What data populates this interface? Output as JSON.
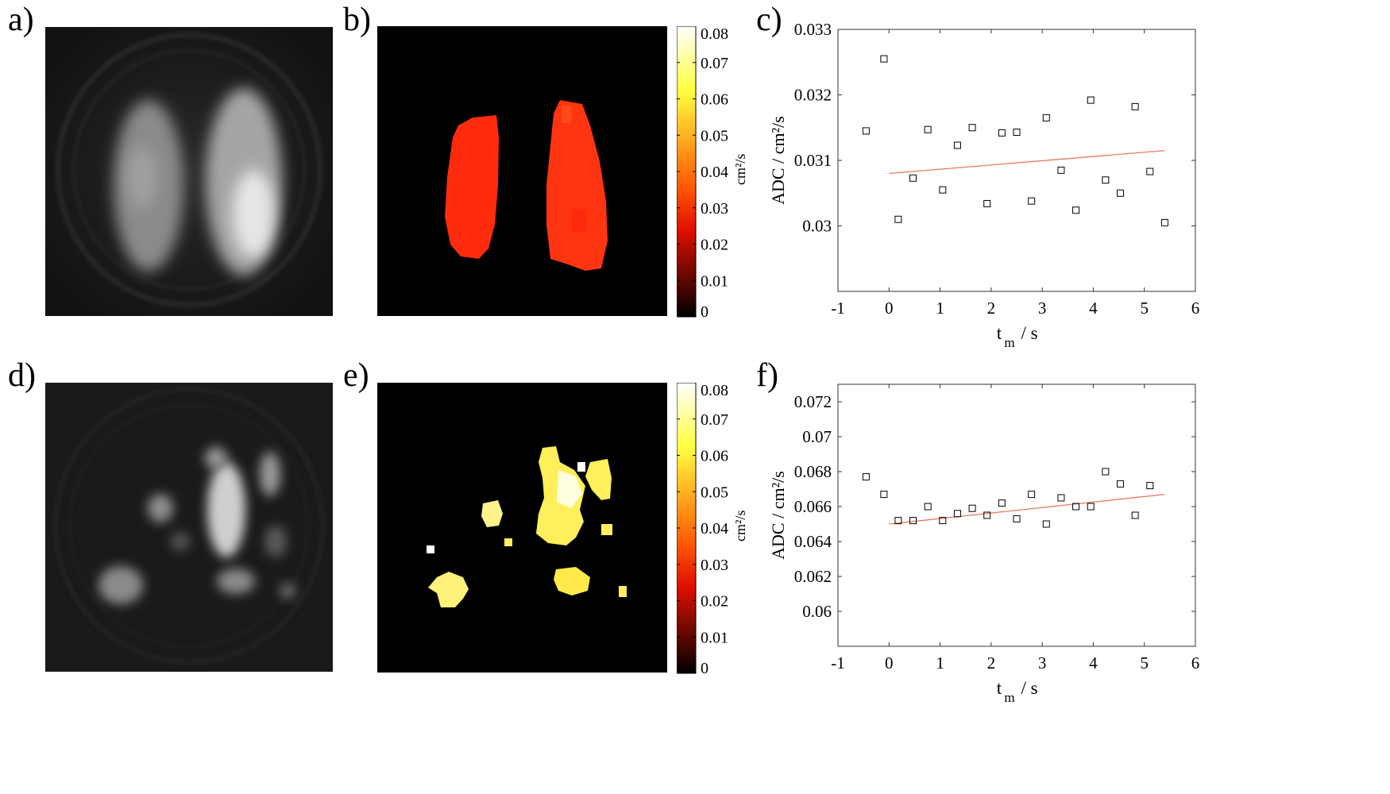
{
  "figure": {
    "panel_labels": [
      "a)",
      "b)",
      "c)",
      "d)",
      "e)",
      "f)"
    ],
    "colorbar": {
      "unit": "cm²/s",
      "ticks": [
        "0.08",
        "0.07",
        "0.06",
        "0.05",
        "0.04",
        "0.03",
        "0.02",
        "0.01",
        "0"
      ],
      "colors": {
        "top": "#ffffff",
        "upper": "#ffff40",
        "mid_high": "#ff9a00",
        "mid": "#ff2200",
        "low": "#a00000",
        "bottom": "#000000"
      }
    },
    "colors": {
      "marker": "#000000",
      "fit_line": "#e8795f",
      "lung_red": "#ff2f10",
      "lung_yellow": "#ffef5a",
      "image_bg": "#000000"
    }
  },
  "chart_data": [
    {
      "type": "scatter",
      "panel": "c)",
      "xlabel_main": "t",
      "xlabel_sub": "m",
      "xlabel_unit": "/ s",
      "ylabel": "ADC / cm²/s",
      "xlim": [
        -1,
        6
      ],
      "ylim": [
        0.029,
        0.033
      ],
      "xticks": [
        "-1",
        "0",
        "1",
        "2",
        "3",
        "4",
        "5",
        "6"
      ],
      "xtick_values": [
        -1,
        0,
        1,
        2,
        3,
        4,
        5,
        6
      ],
      "yticks": [
        "0.03",
        "0.031",
        "0.032",
        "0.033"
      ],
      "ytick_values": [
        0.03,
        0.031,
        0.032,
        0.033
      ],
      "x": [
        -0.45,
        -0.1,
        0.18,
        0.47,
        0.76,
        1.05,
        1.34,
        1.63,
        1.92,
        2.21,
        2.5,
        2.79,
        3.08,
        3.37,
        3.66,
        3.95,
        4.24,
        4.53,
        4.82,
        5.11,
        5.4
      ],
      "y": [
        0.03145,
        0.03255,
        0.0301,
        0.03073,
        0.03147,
        0.03055,
        0.03123,
        0.0315,
        0.03034,
        0.03142,
        0.03143,
        0.03038,
        0.03165,
        0.03085,
        0.03024,
        0.03192,
        0.0307,
        0.0305,
        0.03182,
        0.03083,
        0.03005
      ],
      "fit": {
        "x": [
          0,
          5.4
        ],
        "y": [
          0.0308,
          0.03115
        ]
      }
    },
    {
      "type": "scatter",
      "panel": "f)",
      "xlabel_main": "t",
      "xlabel_sub": "m",
      "xlabel_unit": "/ s",
      "ylabel": "ADC / cm²/s",
      "xlim": [
        -1,
        6
      ],
      "ylim": [
        0.058,
        0.073
      ],
      "xticks": [
        "-1",
        "0",
        "1",
        "2",
        "3",
        "4",
        "5",
        "6"
      ],
      "xtick_values": [
        -1,
        0,
        1,
        2,
        3,
        4,
        5,
        6
      ],
      "yticks": [
        "0.06",
        "0.062",
        "0.064",
        "0.066",
        "0.068",
        "0.07",
        "0.072"
      ],
      "ytick_values": [
        0.06,
        0.062,
        0.064,
        0.066,
        0.068,
        0.07,
        0.072
      ],
      "x": [
        -0.45,
        -0.1,
        0.18,
        0.47,
        0.76,
        1.05,
        1.34,
        1.63,
        1.92,
        2.21,
        2.5,
        2.79,
        3.08,
        3.37,
        3.66,
        3.95,
        4.24,
        4.53,
        4.82,
        5.11
      ],
      "y": [
        0.0677,
        0.0667,
        0.0652,
        0.0652,
        0.066,
        0.0652,
        0.0656,
        0.0659,
        0.0655,
        0.0662,
        0.0653,
        0.0667,
        0.065,
        0.0665,
        0.066,
        0.066,
        0.068,
        0.0673,
        0.0655,
        0.0672
      ],
      "fit": {
        "x": [
          0,
          5.4
        ],
        "y": [
          0.065,
          0.0667
        ]
      }
    }
  ]
}
